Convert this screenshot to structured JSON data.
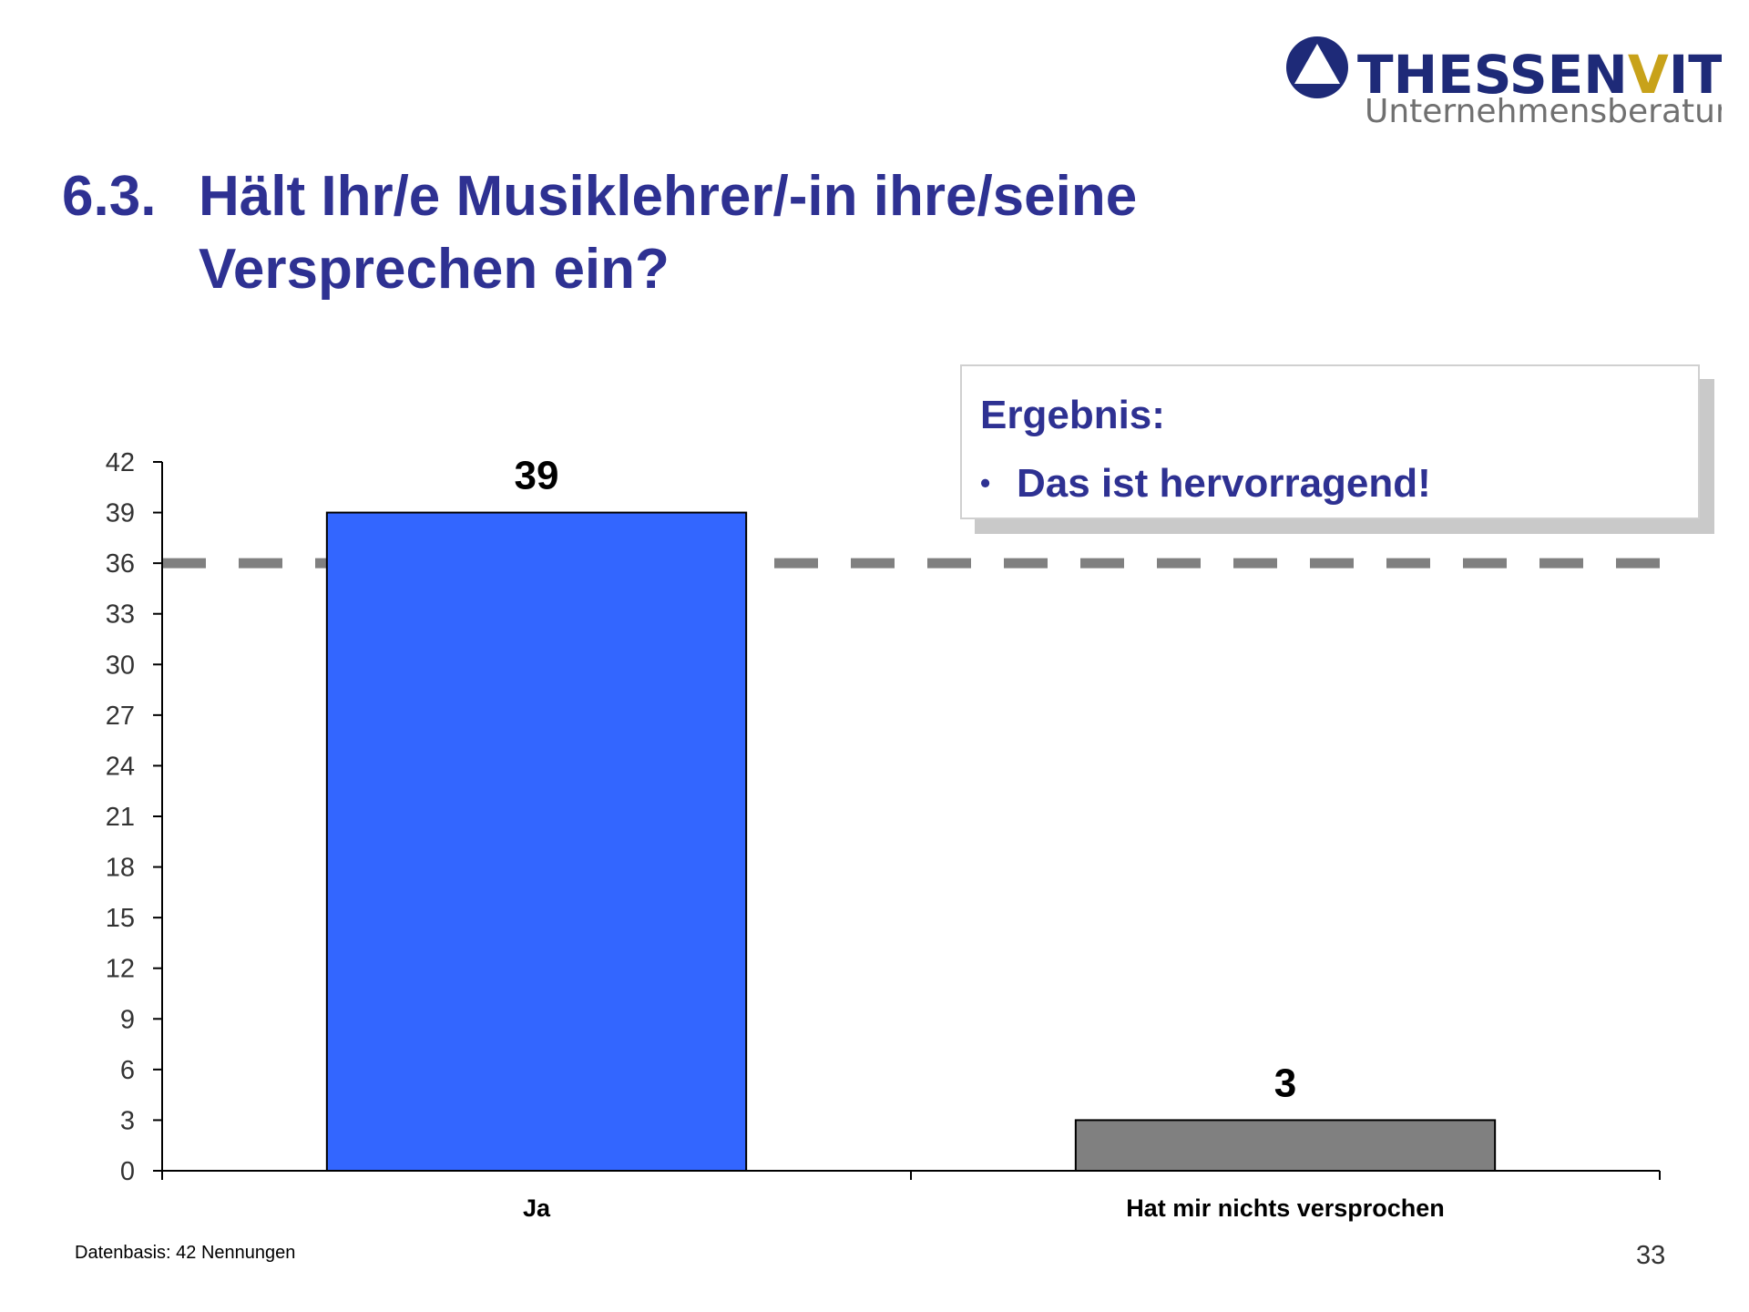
{
  "logo": {
    "name_part1": "THESSEN",
    "name_part2": "V",
    "name_part3": "ITZ",
    "subtitle": "Unternehmensberatung",
    "colors": {
      "primary": "#1e2a78",
      "accent": "#c8a21a",
      "subtitle": "#707070"
    }
  },
  "title": {
    "number": "6.3.",
    "text": "Hält Ihr/e Musiklehrer/-in ihre/seine Versprechen ein?"
  },
  "result_box": {
    "heading": "Ergebnis:",
    "bullet_symbol": "•",
    "bullet": "Das ist hervorragend!"
  },
  "chart_data": {
    "type": "bar",
    "categories": [
      "Ja",
      "Hat mir nichts versprochen"
    ],
    "values": [
      39,
      3
    ],
    "data_labels": [
      "39",
      "3"
    ],
    "bar_colors": [
      "#3366ff",
      "#808080"
    ],
    "ylim": [
      0,
      42
    ],
    "ytick_step": 3,
    "yticks": [
      "0",
      "3",
      "6",
      "9",
      "12",
      "15",
      "18",
      "21",
      "24",
      "27",
      "30",
      "33",
      "36",
      "39",
      "42"
    ],
    "reference_line": {
      "value": 36,
      "style": "dashed",
      "color": "#808080"
    },
    "title": "",
    "xlabel": "",
    "ylabel": ""
  },
  "footer": {
    "data_basis": "Datenbasis: 42 Nennungen",
    "page_number": "33"
  }
}
